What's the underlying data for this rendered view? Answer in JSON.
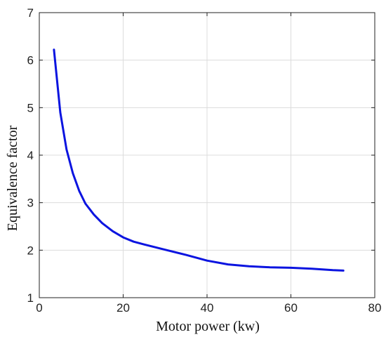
{
  "chart_data": {
    "type": "line",
    "xlabel": "Motor power (kw)",
    "ylabel": "Equivalence factor",
    "xlim": [
      0,
      80
    ],
    "ylim": [
      1,
      7
    ],
    "xticks": [
      0,
      20,
      40,
      60,
      80
    ],
    "yticks": [
      1,
      2,
      3,
      4,
      5,
      6,
      7
    ],
    "grid": true,
    "series": [
      {
        "color": "#0b14e0",
        "x": [
          3.5,
          5,
          6.5,
          8,
          9.5,
          11,
          13,
          15,
          17.5,
          20,
          22.5,
          25,
          30,
          35,
          40,
          45,
          50,
          55,
          60,
          65,
          70,
          72.5
        ],
        "y": [
          6.22,
          4.9,
          4.12,
          3.62,
          3.25,
          2.98,
          2.75,
          2.57,
          2.4,
          2.27,
          2.18,
          2.12,
          2.01,
          1.9,
          1.78,
          1.7,
          1.66,
          1.64,
          1.63,
          1.61,
          1.58,
          1.57
        ]
      }
    ]
  }
}
